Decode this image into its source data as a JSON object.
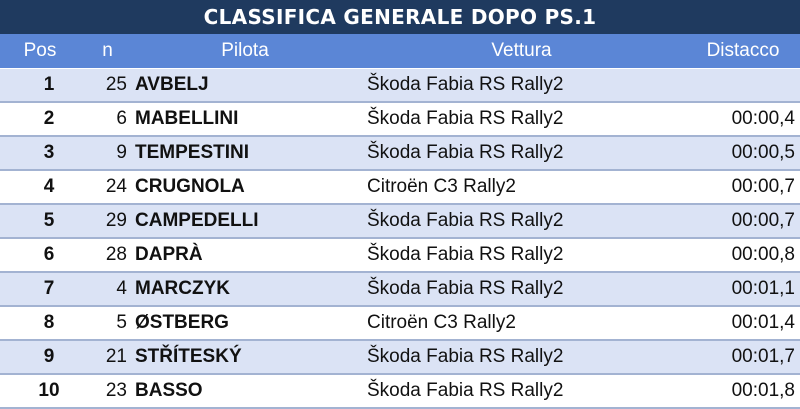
{
  "title": "CLASSIFICA GENERALE DOPO PS.1",
  "headers": {
    "pos": "Pos",
    "num": "n",
    "driver": "Pilota",
    "car": "Vettura",
    "gap": "Distacco"
  },
  "rows": [
    {
      "pos": "1",
      "num": "25",
      "driver": "AVBELJ",
      "car": "Škoda Fabia RS Rally2",
      "gap": ""
    },
    {
      "pos": "2",
      "num": "6",
      "driver": "MABELLINI",
      "car": "Škoda Fabia RS Rally2",
      "gap": "00:00,4"
    },
    {
      "pos": "3",
      "num": "9",
      "driver": "TEMPESTINI",
      "car": "Škoda Fabia RS Rally2",
      "gap": "00:00,5"
    },
    {
      "pos": "4",
      "num": "24",
      "driver": "CRUGNOLA",
      "car": "Citroën C3 Rally2",
      "gap": "00:00,7"
    },
    {
      "pos": "5",
      "num": "29",
      "driver": "CAMPEDELLI",
      "car": "Škoda Fabia RS Rally2",
      "gap": "00:00,7"
    },
    {
      "pos": "6",
      "num": "28",
      "driver": "DAPRÀ",
      "car": "Škoda Fabia RS Rally2",
      "gap": "00:00,8"
    },
    {
      "pos": "7",
      "num": "4",
      "driver": "MARCZYK",
      "car": "Škoda Fabia RS Rally2",
      "gap": "00:01,1"
    },
    {
      "pos": "8",
      "num": "5",
      "driver": "ØSTBERG",
      "car": "Citroën C3 Rally2",
      "gap": "00:01,4"
    },
    {
      "pos": "9",
      "num": "21",
      "driver": "STŘÍTESKÝ",
      "car": "Škoda Fabia RS Rally2",
      "gap": "00:01,7"
    },
    {
      "pos": "10",
      "num": "23",
      "driver": "BASSO",
      "car": "Škoda Fabia RS Rally2",
      "gap": "00:01,8"
    }
  ],
  "colors": {
    "title_bg": "#1f3a5f",
    "header_bg": "#5b86d6",
    "row_odd": "#dbe3f5",
    "row_even": "#ffffff",
    "row_border": "#a3b3d2"
  }
}
